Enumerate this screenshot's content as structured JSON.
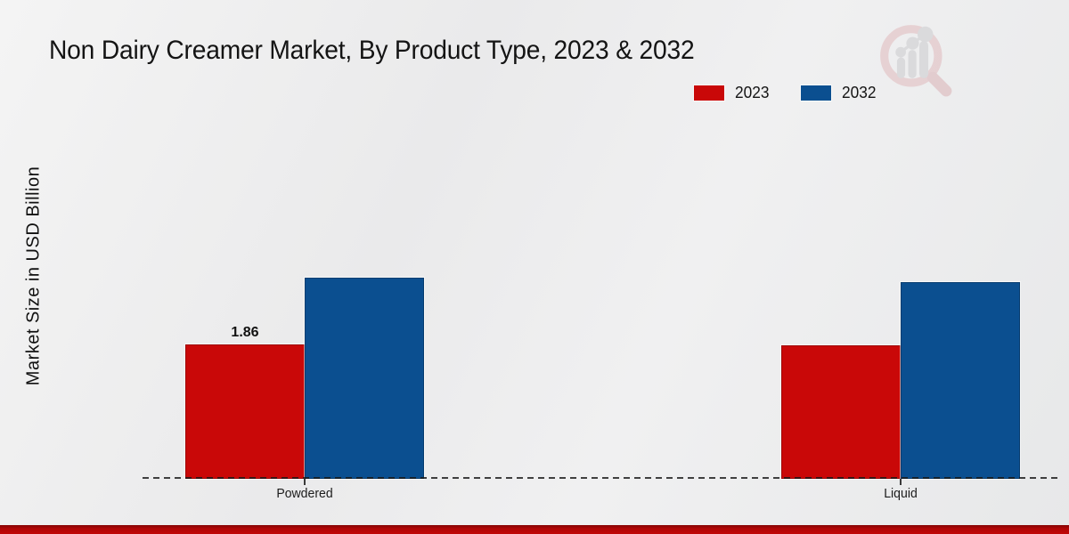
{
  "page": {
    "title": "Non Dairy Creamer Market, By Product Type, 2023 & 2032"
  },
  "y_axis_label": "Market Size in USD Billion",
  "legend": {
    "items": [
      {
        "label": "2023",
        "color": "#c90808"
      },
      {
        "label": "2032",
        "color": "#0b4f90"
      }
    ]
  },
  "colors": {
    "series_2023": "#c90808",
    "series_2032": "#0b4f90",
    "footer_bar": "#b10606",
    "background": "#ececec",
    "logo_ring": "#e0b8bb",
    "logo_bars": "#c7c7cb"
  },
  "chart_data": {
    "type": "bar",
    "categories": [
      "Powdered",
      "Liquid"
    ],
    "series": [
      {
        "name": "2023",
        "color": "#c90808",
        "values": [
          1.86,
          1.85
        ]
      },
      {
        "name": "2032",
        "color": "#0b4f90",
        "values": [
          2.79,
          2.72
        ]
      }
    ],
    "title": "Non Dairy Creamer Market, By Product Type, 2023 & 2032",
    "xlabel": "",
    "ylabel": "Market Size in USD Billion",
    "ylim": [
      0,
      3.5
    ],
    "grid": false,
    "legend_position": "top-right",
    "baseline_style": "dashed",
    "value_labels": [
      {
        "category": "Powdered",
        "series": "2023",
        "text": "1.86"
      }
    ]
  }
}
